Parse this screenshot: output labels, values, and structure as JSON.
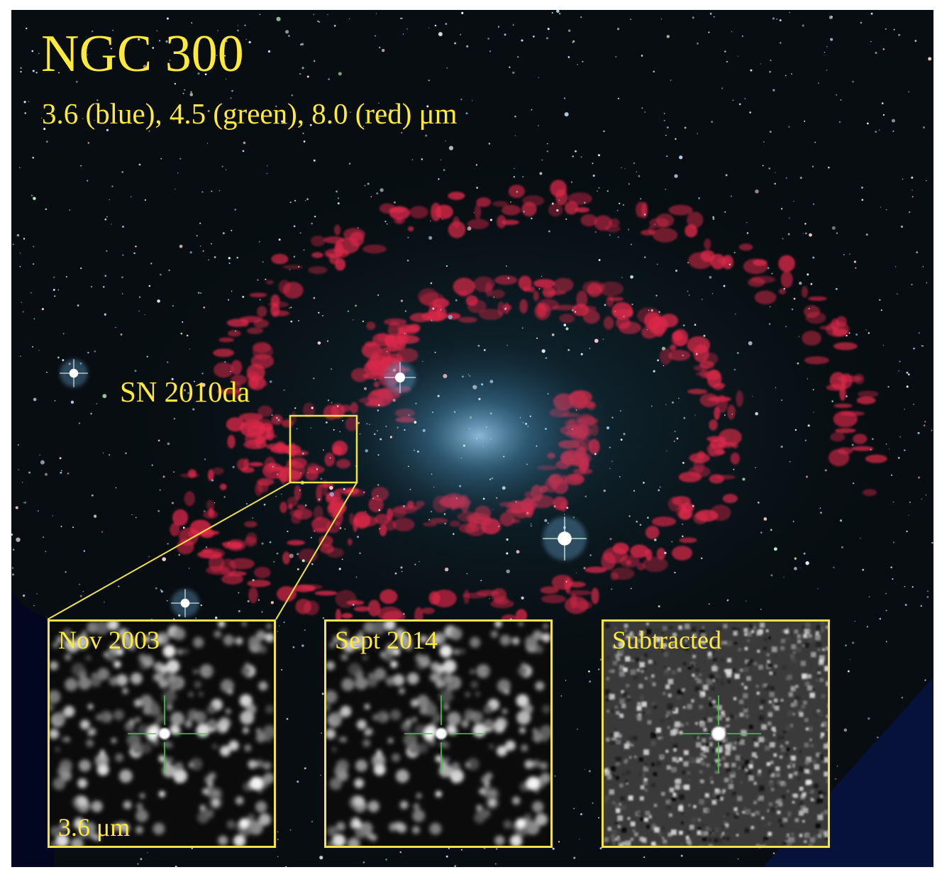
{
  "figure": {
    "title": "NGC 300",
    "subtitle": "3.6 (blue), 4.5 (green), 8.0 (red) μm",
    "target_label": "SN 2010da",
    "insets": [
      {
        "label": "Nov 2003",
        "band_label": "3.6 μm"
      },
      {
        "label": "Sept 2014",
        "band_label": ""
      },
      {
        "label": "Subtracted",
        "band_label": ""
      }
    ]
  },
  "colors": {
    "annotation": "#ffea3c",
    "emission_8um": "#e0284a",
    "stellar_3_6um": "#6fb3e0",
    "crosshair": "#3fcf4a",
    "background": "#070d10"
  }
}
